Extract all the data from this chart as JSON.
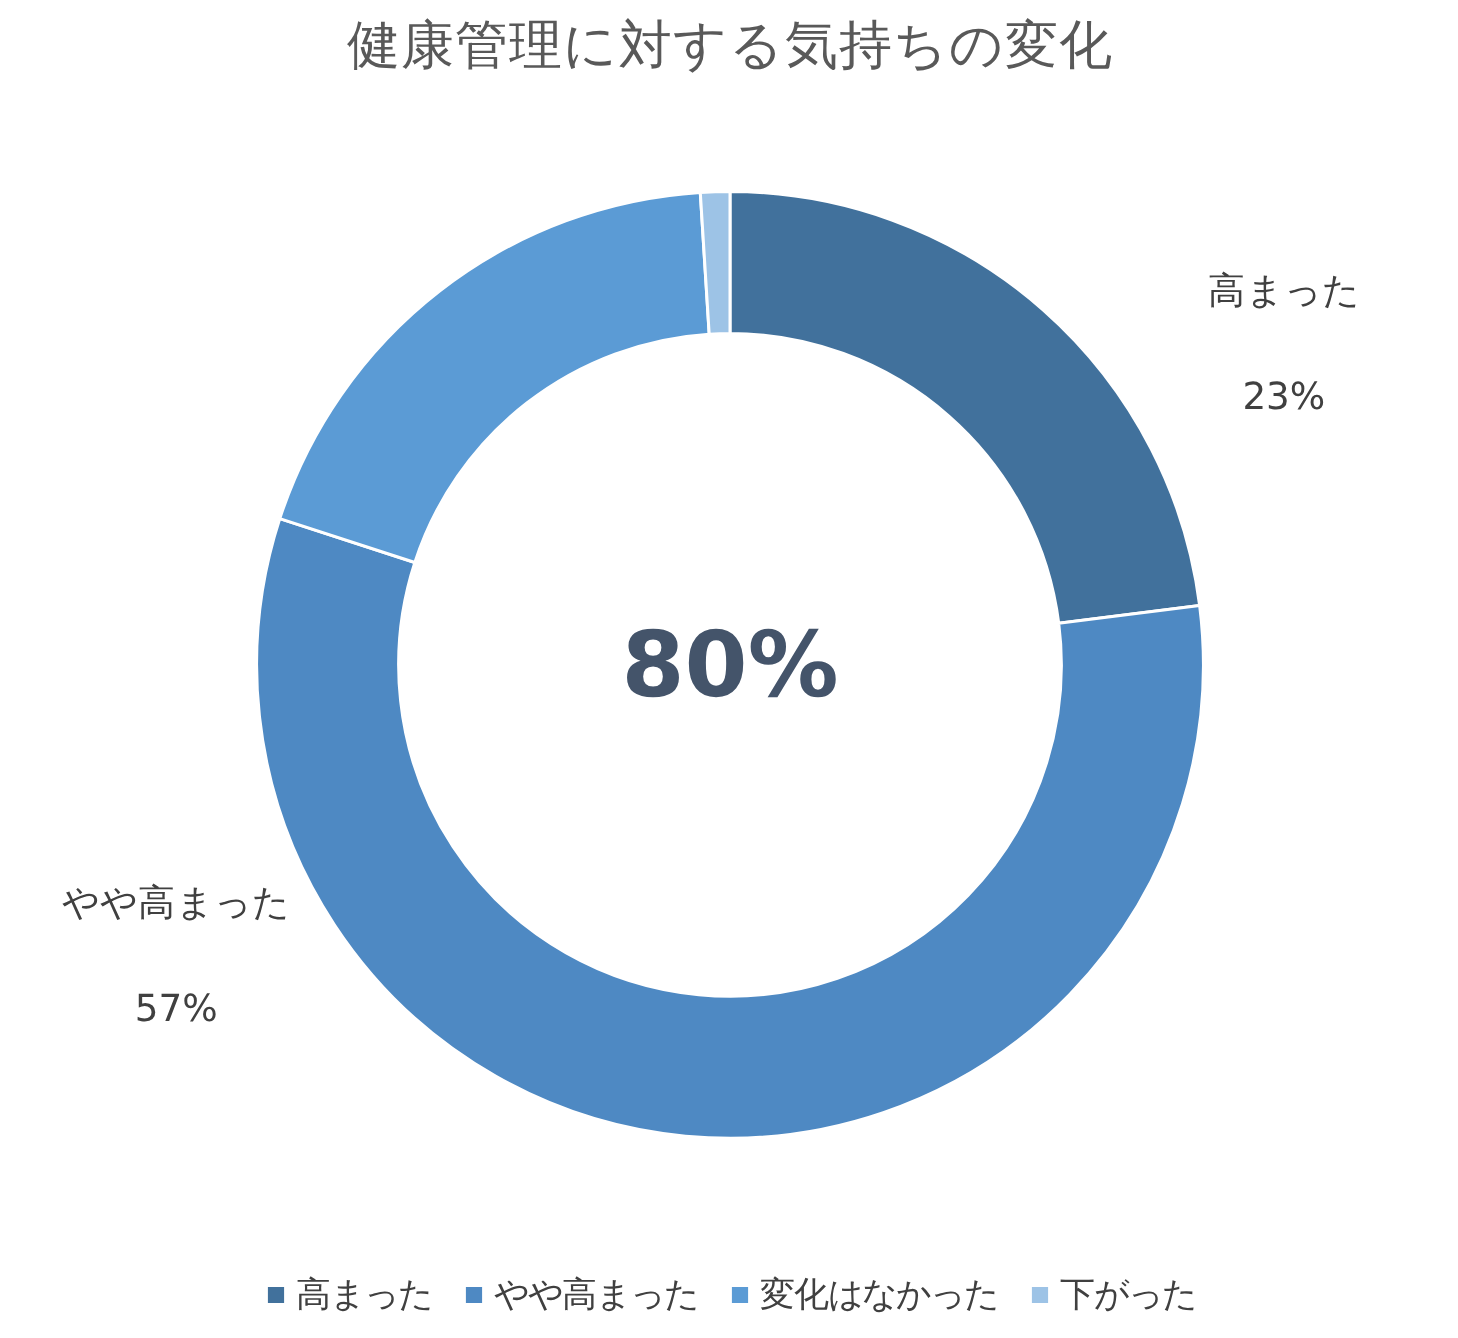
{
  "chart_data": {
    "type": "donut",
    "title": "健康管理に対する気持ちの変化",
    "categories": [
      "高まった",
      "やや高まった",
      "変化はなかった",
      "下がった"
    ],
    "values": [
      23,
      57,
      19,
      1
    ],
    "colors": [
      "#41719c",
      "#4e89c3",
      "#5b9bd5",
      "#9dc3e6"
    ],
    "value_labels": [
      "23%",
      "57%",
      null,
      null
    ],
    "annotations": [
      "80%"
    ],
    "legend": "bottom"
  }
}
